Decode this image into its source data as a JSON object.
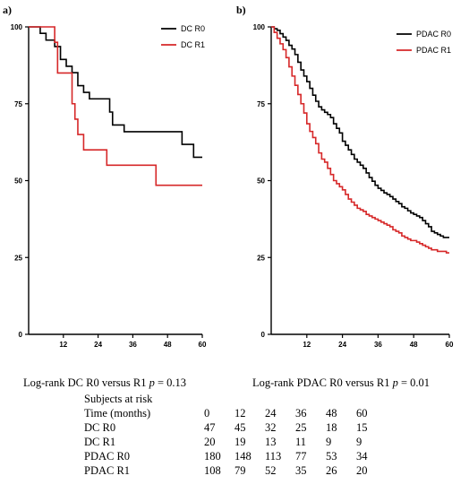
{
  "chart_data": [
    {
      "panel": "a)",
      "type": "line",
      "step": true,
      "xlim": [
        0,
        60
      ],
      "ylim": [
        0,
        100
      ],
      "x_ticks": [
        12,
        24,
        36,
        48,
        60
      ],
      "y_ticks": [
        0,
        25,
        50,
        75,
        100
      ],
      "legend_position": "top-right",
      "series": [
        {
          "name": "DC R0",
          "color": "#000000",
          "points": [
            [
              0,
              100
            ],
            [
              4,
              97.9
            ],
            [
              6,
              95.7
            ],
            [
              9,
              93.6
            ],
            [
              11,
              89.4
            ],
            [
              13,
              87.2
            ],
            [
              15,
              85.1
            ],
            [
              17,
              80.9
            ],
            [
              19,
              78.7
            ],
            [
              21,
              76.6
            ],
            [
              28,
              72.3
            ],
            [
              29,
              68.1
            ],
            [
              33,
              65.9
            ],
            [
              53,
              61.8
            ],
            [
              57,
              57.6
            ],
            [
              60,
              57.6
            ]
          ]
        },
        {
          "name": "DC R1",
          "color": "#d62728",
          "points": [
            [
              0,
              100
            ],
            [
              7,
              100
            ],
            [
              9,
              95
            ],
            [
              10,
              85
            ],
            [
              15,
              75
            ],
            [
              16,
              70
            ],
            [
              17,
              65
            ],
            [
              19,
              60
            ],
            [
              27,
              55
            ],
            [
              44,
              48.5
            ],
            [
              60,
              48.5
            ]
          ]
        }
      ]
    },
    {
      "panel": "b)",
      "type": "line",
      "step": true,
      "xlim": [
        0,
        60
      ],
      "ylim": [
        0,
        100
      ],
      "x_ticks": [
        12,
        24,
        36,
        48,
        60
      ],
      "y_ticks": [
        0,
        25,
        50,
        75,
        100
      ],
      "legend_position": "top-right",
      "series": [
        {
          "name": "PDAC R0",
          "color": "#000000",
          "points": [
            [
              0,
              100
            ],
            [
              1,
              99.4
            ],
            [
              2,
              98.9
            ],
            [
              3,
              97.8
            ],
            [
              4,
              96.7
            ],
            [
              5,
              95.6
            ],
            [
              6,
              94
            ],
            [
              7,
              92.8
            ],
            [
              8,
              91
            ],
            [
              9,
              88.5
            ],
            [
              10,
              86
            ],
            [
              11,
              84
            ],
            [
              12,
              82.2
            ],
            [
              13,
              80
            ],
            [
              14,
              77.8
            ],
            [
              15,
              75.8
            ],
            [
              16,
              74
            ],
            [
              17,
              73
            ],
            [
              18,
              72.2
            ],
            [
              19,
              71.5
            ],
            [
              20,
              70.5
            ],
            [
              21,
              68.5
            ],
            [
              22,
              67
            ],
            [
              23,
              65.5
            ],
            [
              24,
              62.8
            ],
            [
              25,
              61.5
            ],
            [
              26,
              60
            ],
            [
              27,
              58.5
            ],
            [
              28,
              57
            ],
            [
              29,
              56
            ],
            [
              30,
              55
            ],
            [
              31,
              54
            ],
            [
              32,
              52.5
            ],
            [
              33,
              51
            ],
            [
              34,
              49.8
            ],
            [
              35,
              48.5
            ],
            [
              36,
              47.5
            ],
            [
              37,
              46.8
            ],
            [
              38,
              46
            ],
            [
              39,
              45.5
            ],
            [
              40,
              44.8
            ],
            [
              41,
              44
            ],
            [
              42,
              43.2
            ],
            [
              43,
              42.5
            ],
            [
              44,
              41.5
            ],
            [
              45,
              41
            ],
            [
              46,
              40.2
            ],
            [
              47,
              39.5
            ],
            [
              48,
              39
            ],
            [
              49,
              38.5
            ],
            [
              50,
              38
            ],
            [
              51,
              37
            ],
            [
              52,
              36
            ],
            [
              53,
              35
            ],
            [
              54,
              33.5
            ],
            [
              55,
              33
            ],
            [
              56,
              32.5
            ],
            [
              57,
              32
            ],
            [
              58,
              31.5
            ],
            [
              59,
              31.5
            ],
            [
              60,
              31.5
            ]
          ]
        },
        {
          "name": "PDAC R1",
          "color": "#d62728",
          "points": [
            [
              0,
              100
            ],
            [
              1,
              98.2
            ],
            [
              2,
              96.3
            ],
            [
              3,
              94.5
            ],
            [
              4,
              92.6
            ],
            [
              5,
              90
            ],
            [
              6,
              87
            ],
            [
              7,
              84
            ],
            [
              8,
              81
            ],
            [
              9,
              78
            ],
            [
              10,
              75
            ],
            [
              11,
              72
            ],
            [
              12,
              68.5
            ],
            [
              13,
              66
            ],
            [
              14,
              64
            ],
            [
              15,
              62
            ],
            [
              16,
              59
            ],
            [
              17,
              57
            ],
            [
              18,
              56
            ],
            [
              19,
              54
            ],
            [
              20,
              52
            ],
            [
              21,
              50
            ],
            [
              22,
              49
            ],
            [
              23,
              48
            ],
            [
              24,
              47
            ],
            [
              25,
              45.5
            ],
            [
              26,
              44
            ],
            [
              27,
              43
            ],
            [
              28,
              42
            ],
            [
              29,
              41
            ],
            [
              30,
              40.5
            ],
            [
              31,
              40
            ],
            [
              32,
              39
            ],
            [
              33,
              38.5
            ],
            [
              34,
              38
            ],
            [
              35,
              37.5
            ],
            [
              36,
              37
            ],
            [
              37,
              36.5
            ],
            [
              38,
              36
            ],
            [
              39,
              35.5
            ],
            [
              40,
              35
            ],
            [
              41,
              34
            ],
            [
              42,
              33.5
            ],
            [
              43,
              33
            ],
            [
              44,
              32
            ],
            [
              45,
              31.5
            ],
            [
              46,
              31
            ],
            [
              47,
              30.5
            ],
            [
              48,
              30.5
            ],
            [
              49,
              30
            ],
            [
              50,
              29.5
            ],
            [
              51,
              29
            ],
            [
              52,
              28.5
            ],
            [
              53,
              28
            ],
            [
              54,
              27.5
            ],
            [
              55,
              27.5
            ],
            [
              56,
              27
            ],
            [
              57,
              27
            ],
            [
              58,
              27
            ],
            [
              59,
              26.5
            ],
            [
              60,
              26.5
            ]
          ]
        }
      ]
    }
  ],
  "captions": {
    "a_prefix": "Log-rank DC R0 versus R1 ",
    "a_p": "p",
    "a_value": " = 0.13",
    "b_prefix": "Log-rank PDAC R0 versus R1 ",
    "b_p": "p",
    "b_value": " = 0.01"
  },
  "risk_table": {
    "title": "Subjects at risk",
    "header_label": "Time (months)",
    "times": [
      "0",
      "12",
      "24",
      "36",
      "48",
      "60"
    ],
    "rows": [
      {
        "label": "DC R0",
        "values": [
          "47",
          "45",
          "32",
          "25",
          "18",
          "15"
        ]
      },
      {
        "label": "DC R1",
        "values": [
          "20",
          "19",
          "13",
          "11",
          "9",
          "9"
        ]
      },
      {
        "label": "PDAC R0",
        "values": [
          "180",
          "148",
          "113",
          "77",
          "53",
          "34"
        ]
      },
      {
        "label": "PDAC R1",
        "values": [
          "108",
          "79",
          "52",
          "35",
          "26",
          "20"
        ]
      }
    ]
  }
}
